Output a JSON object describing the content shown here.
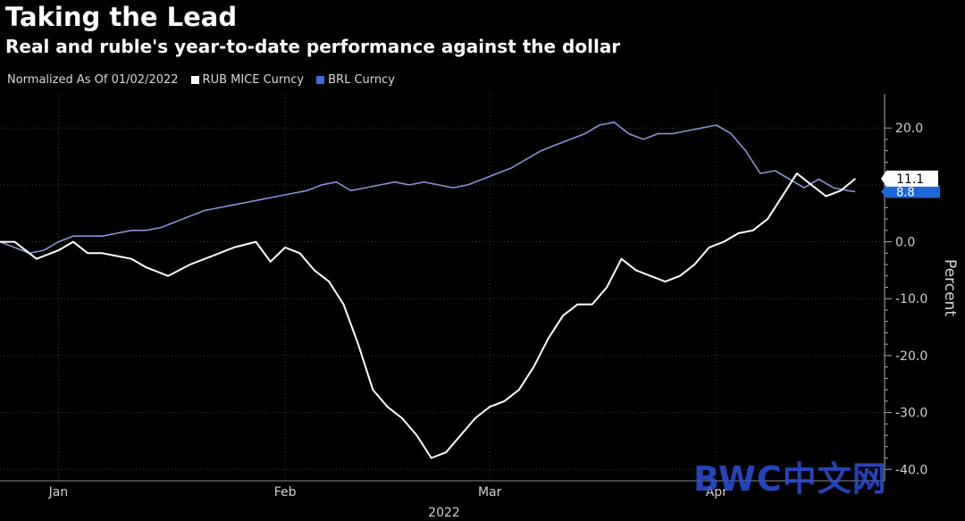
{
  "title": "Taking the Lead",
  "subtitle": "Real and ruble's year-to-date performance against the dollar",
  "legend": {
    "note": "Normalized As Of 01/02/2022",
    "items": [
      {
        "label": "RUB MICE Curncy",
        "color": "#ffffff"
      },
      {
        "label": "BRL Curncy",
        "color": "#3a6fd8"
      }
    ]
  },
  "watermark": "BWC中文网",
  "colors": {
    "background": "#000000",
    "rub": "#ffffff",
    "brl": "#8892d8",
    "brl_tag": "#1f66d6",
    "grid": "#3c3c3c"
  },
  "chart_data": {
    "type": "line",
    "xlabel": "2022",
    "ylabel": "Percent",
    "x_ticks": [
      "Jan",
      "Feb",
      "Mar",
      "Apr"
    ],
    "x_tick_days": [
      8,
      39,
      67,
      98
    ],
    "xlim_days": [
      0,
      121
    ],
    "ylim": [
      -42,
      26
    ],
    "y_ticks": [
      20,
      10,
      0,
      -10,
      -20,
      -30,
      -40
    ],
    "y_tick_labels": [
      "20.0",
      "0.0",
      "-10.0",
      "-20.0",
      "-30.0",
      "-40.0"
    ],
    "y_tick_label_values": [
      20,
      0,
      -10,
      -20,
      -30,
      -40
    ],
    "grid": true,
    "series": [
      {
        "name": "RUB MICE Curncy",
        "last_value_label": "11.1",
        "points": [
          [
            0,
            0
          ],
          [
            2,
            0
          ],
          [
            5,
            -3
          ],
          [
            8,
            -1.5
          ],
          [
            10,
            0
          ],
          [
            12,
            -2
          ],
          [
            14,
            -2
          ],
          [
            16,
            -2.5
          ],
          [
            18,
            -3
          ],
          [
            20,
            -4.5
          ],
          [
            22,
            -5.5
          ],
          [
            23,
            -6
          ],
          [
            26,
            -4
          ],
          [
            28,
            -3
          ],
          [
            30,
            -2
          ],
          [
            32,
            -1
          ],
          [
            35,
            0
          ],
          [
            37,
            -3.5
          ],
          [
            39,
            -1
          ],
          [
            41,
            -2
          ],
          [
            43,
            -5
          ],
          [
            45,
            -7
          ],
          [
            47,
            -11
          ],
          [
            49,
            -18
          ],
          [
            51,
            -26
          ],
          [
            53,
            -29
          ],
          [
            55,
            -31
          ],
          [
            57,
            -34
          ],
          [
            59,
            -38
          ],
          [
            61,
            -37
          ],
          [
            63,
            -34
          ],
          [
            65,
            -31
          ],
          [
            67,
            -29
          ],
          [
            69,
            -28
          ],
          [
            71,
            -26
          ],
          [
            73,
            -22
          ],
          [
            75,
            -17
          ],
          [
            77,
            -13
          ],
          [
            79,
            -11
          ],
          [
            81,
            -11
          ],
          [
            83,
            -8
          ],
          [
            85,
            -3
          ],
          [
            87,
            -5
          ],
          [
            89,
            -6
          ],
          [
            91,
            -7
          ],
          [
            93,
            -6
          ],
          [
            95,
            -4
          ],
          [
            97,
            -1
          ],
          [
            99,
            0
          ],
          [
            101,
            1.5
          ],
          [
            103,
            2
          ],
          [
            105,
            4
          ],
          [
            107,
            8
          ],
          [
            109,
            12
          ],
          [
            111,
            10
          ],
          [
            113,
            8
          ],
          [
            115,
            9
          ],
          [
            117,
            11.1
          ]
        ]
      },
      {
        "name": "BRL Curncy",
        "last_value_label": "8.8",
        "points": [
          [
            0,
            0
          ],
          [
            2,
            -1
          ],
          [
            4,
            -2
          ],
          [
            6,
            -1.5
          ],
          [
            8,
            0
          ],
          [
            10,
            1
          ],
          [
            12,
            1
          ],
          [
            14,
            1
          ],
          [
            16,
            1.5
          ],
          [
            18,
            2
          ],
          [
            20,
            2
          ],
          [
            22,
            2.5
          ],
          [
            24,
            3.5
          ],
          [
            26,
            4.5
          ],
          [
            28,
            5.5
          ],
          [
            30,
            6
          ],
          [
            32,
            6.5
          ],
          [
            34,
            7
          ],
          [
            36,
            7.5
          ],
          [
            38,
            8
          ],
          [
            40,
            8.5
          ],
          [
            42,
            9
          ],
          [
            44,
            10
          ],
          [
            46,
            10.5
          ],
          [
            48,
            9
          ],
          [
            50,
            9.5
          ],
          [
            52,
            10
          ],
          [
            54,
            10.5
          ],
          [
            56,
            10
          ],
          [
            58,
            10.5
          ],
          [
            60,
            10
          ],
          [
            62,
            9.5
          ],
          [
            64,
            10
          ],
          [
            66,
            11
          ],
          [
            68,
            12
          ],
          [
            70,
            13
          ],
          [
            72,
            14.5
          ],
          [
            74,
            16
          ],
          [
            76,
            17
          ],
          [
            78,
            18
          ],
          [
            80,
            19
          ],
          [
            82,
            20.5
          ],
          [
            84,
            21
          ],
          [
            86,
            19
          ],
          [
            88,
            18
          ],
          [
            90,
            19
          ],
          [
            92,
            19
          ],
          [
            94,
            19.5
          ],
          [
            96,
            20
          ],
          [
            98,
            20.5
          ],
          [
            100,
            19
          ],
          [
            102,
            16
          ],
          [
            104,
            12
          ],
          [
            106,
            12.5
          ],
          [
            108,
            11
          ],
          [
            110,
            9.5
          ],
          [
            112,
            11
          ],
          [
            114,
            9.5
          ],
          [
            116,
            9
          ],
          [
            117,
            8.8
          ]
        ]
      }
    ]
  }
}
